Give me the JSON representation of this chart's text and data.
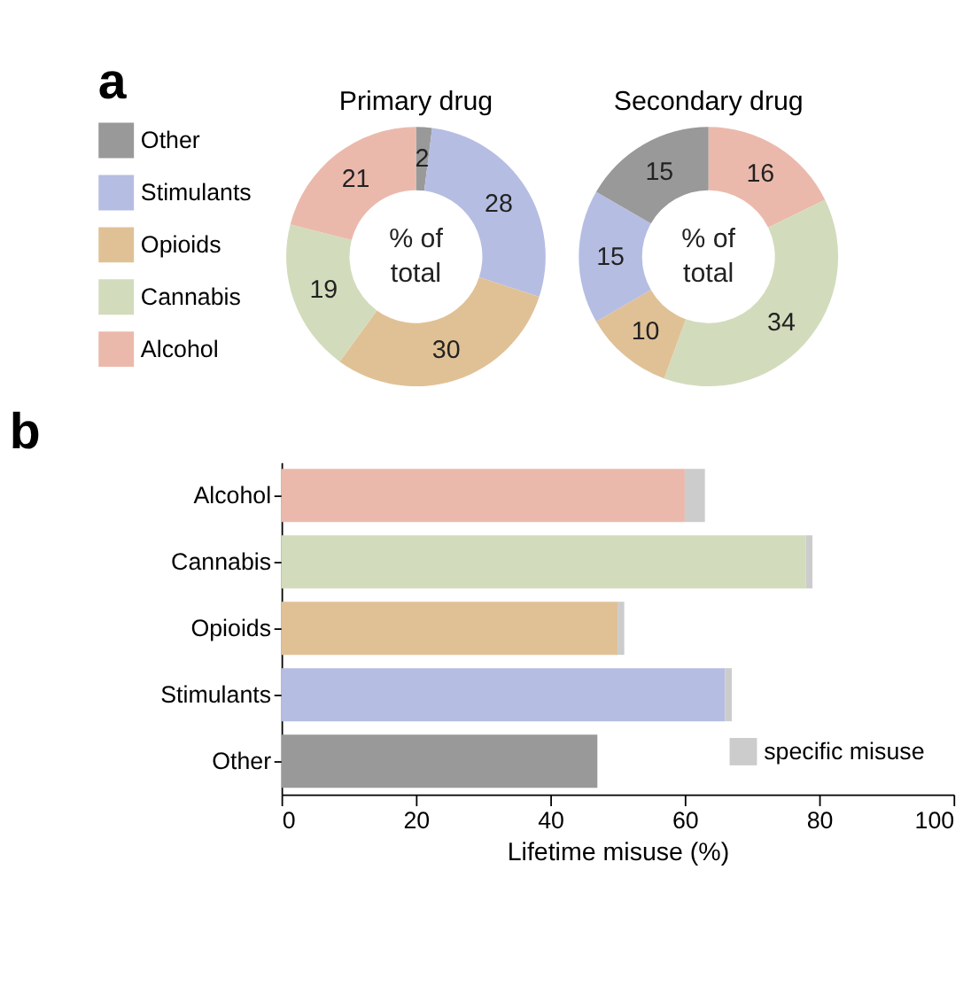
{
  "chart_data": [
    {
      "type": "donut",
      "title": "Primary drug",
      "annotations": [
        "a",
        "% of\ntotal"
      ],
      "legend": "left",
      "data_labels": true,
      "categories": [
        "Other",
        "Stimulants",
        "Opioids",
        "Cannabis",
        "Alcohol"
      ],
      "values": [
        2,
        28,
        30,
        19,
        21
      ],
      "colors": [
        "#999999",
        "#b6bde2",
        "#e0c196",
        "#d2dcbc",
        "#ebb9ac"
      ]
    },
    {
      "type": "donut",
      "title": "Secondary drug",
      "annotations": [
        "% of\ntotal"
      ],
      "data_labels": true,
      "categories": [
        null,
        null,
        null,
        null,
        null
      ],
      "values": [
        16,
        34,
        10,
        15,
        15
      ],
      "colors": [
        "#ebb9ac",
        "#d2dcbc",
        "#e0c196",
        "#b6bde2",
        "#999999"
      ]
    },
    {
      "type": "bar",
      "orientation": "horizontal",
      "stacked": true,
      "annotations": [
        "b"
      ],
      "xlabel": "Lifetime misuse (%)",
      "categories": [
        "Alcohol",
        "Cannabis",
        "Opioids",
        "Stimulants",
        "Other"
      ],
      "series": [
        {
          "colors": [
            "#ebb9ac",
            "#d2dcbc",
            "#e0c196",
            "#b6bde2",
            "#999999"
          ],
          "values": [
            60,
            78,
            50,
            66,
            47
          ]
        },
        {
          "name": "specific misuse",
          "color": "#cccccc",
          "values": [
            3,
            1,
            1,
            1,
            null
          ]
        }
      ],
      "xlim": [
        0,
        100
      ],
      "xticks": [
        0,
        20,
        40,
        60,
        80,
        100
      ],
      "grid": false,
      "legend": "bottom right"
    }
  ]
}
